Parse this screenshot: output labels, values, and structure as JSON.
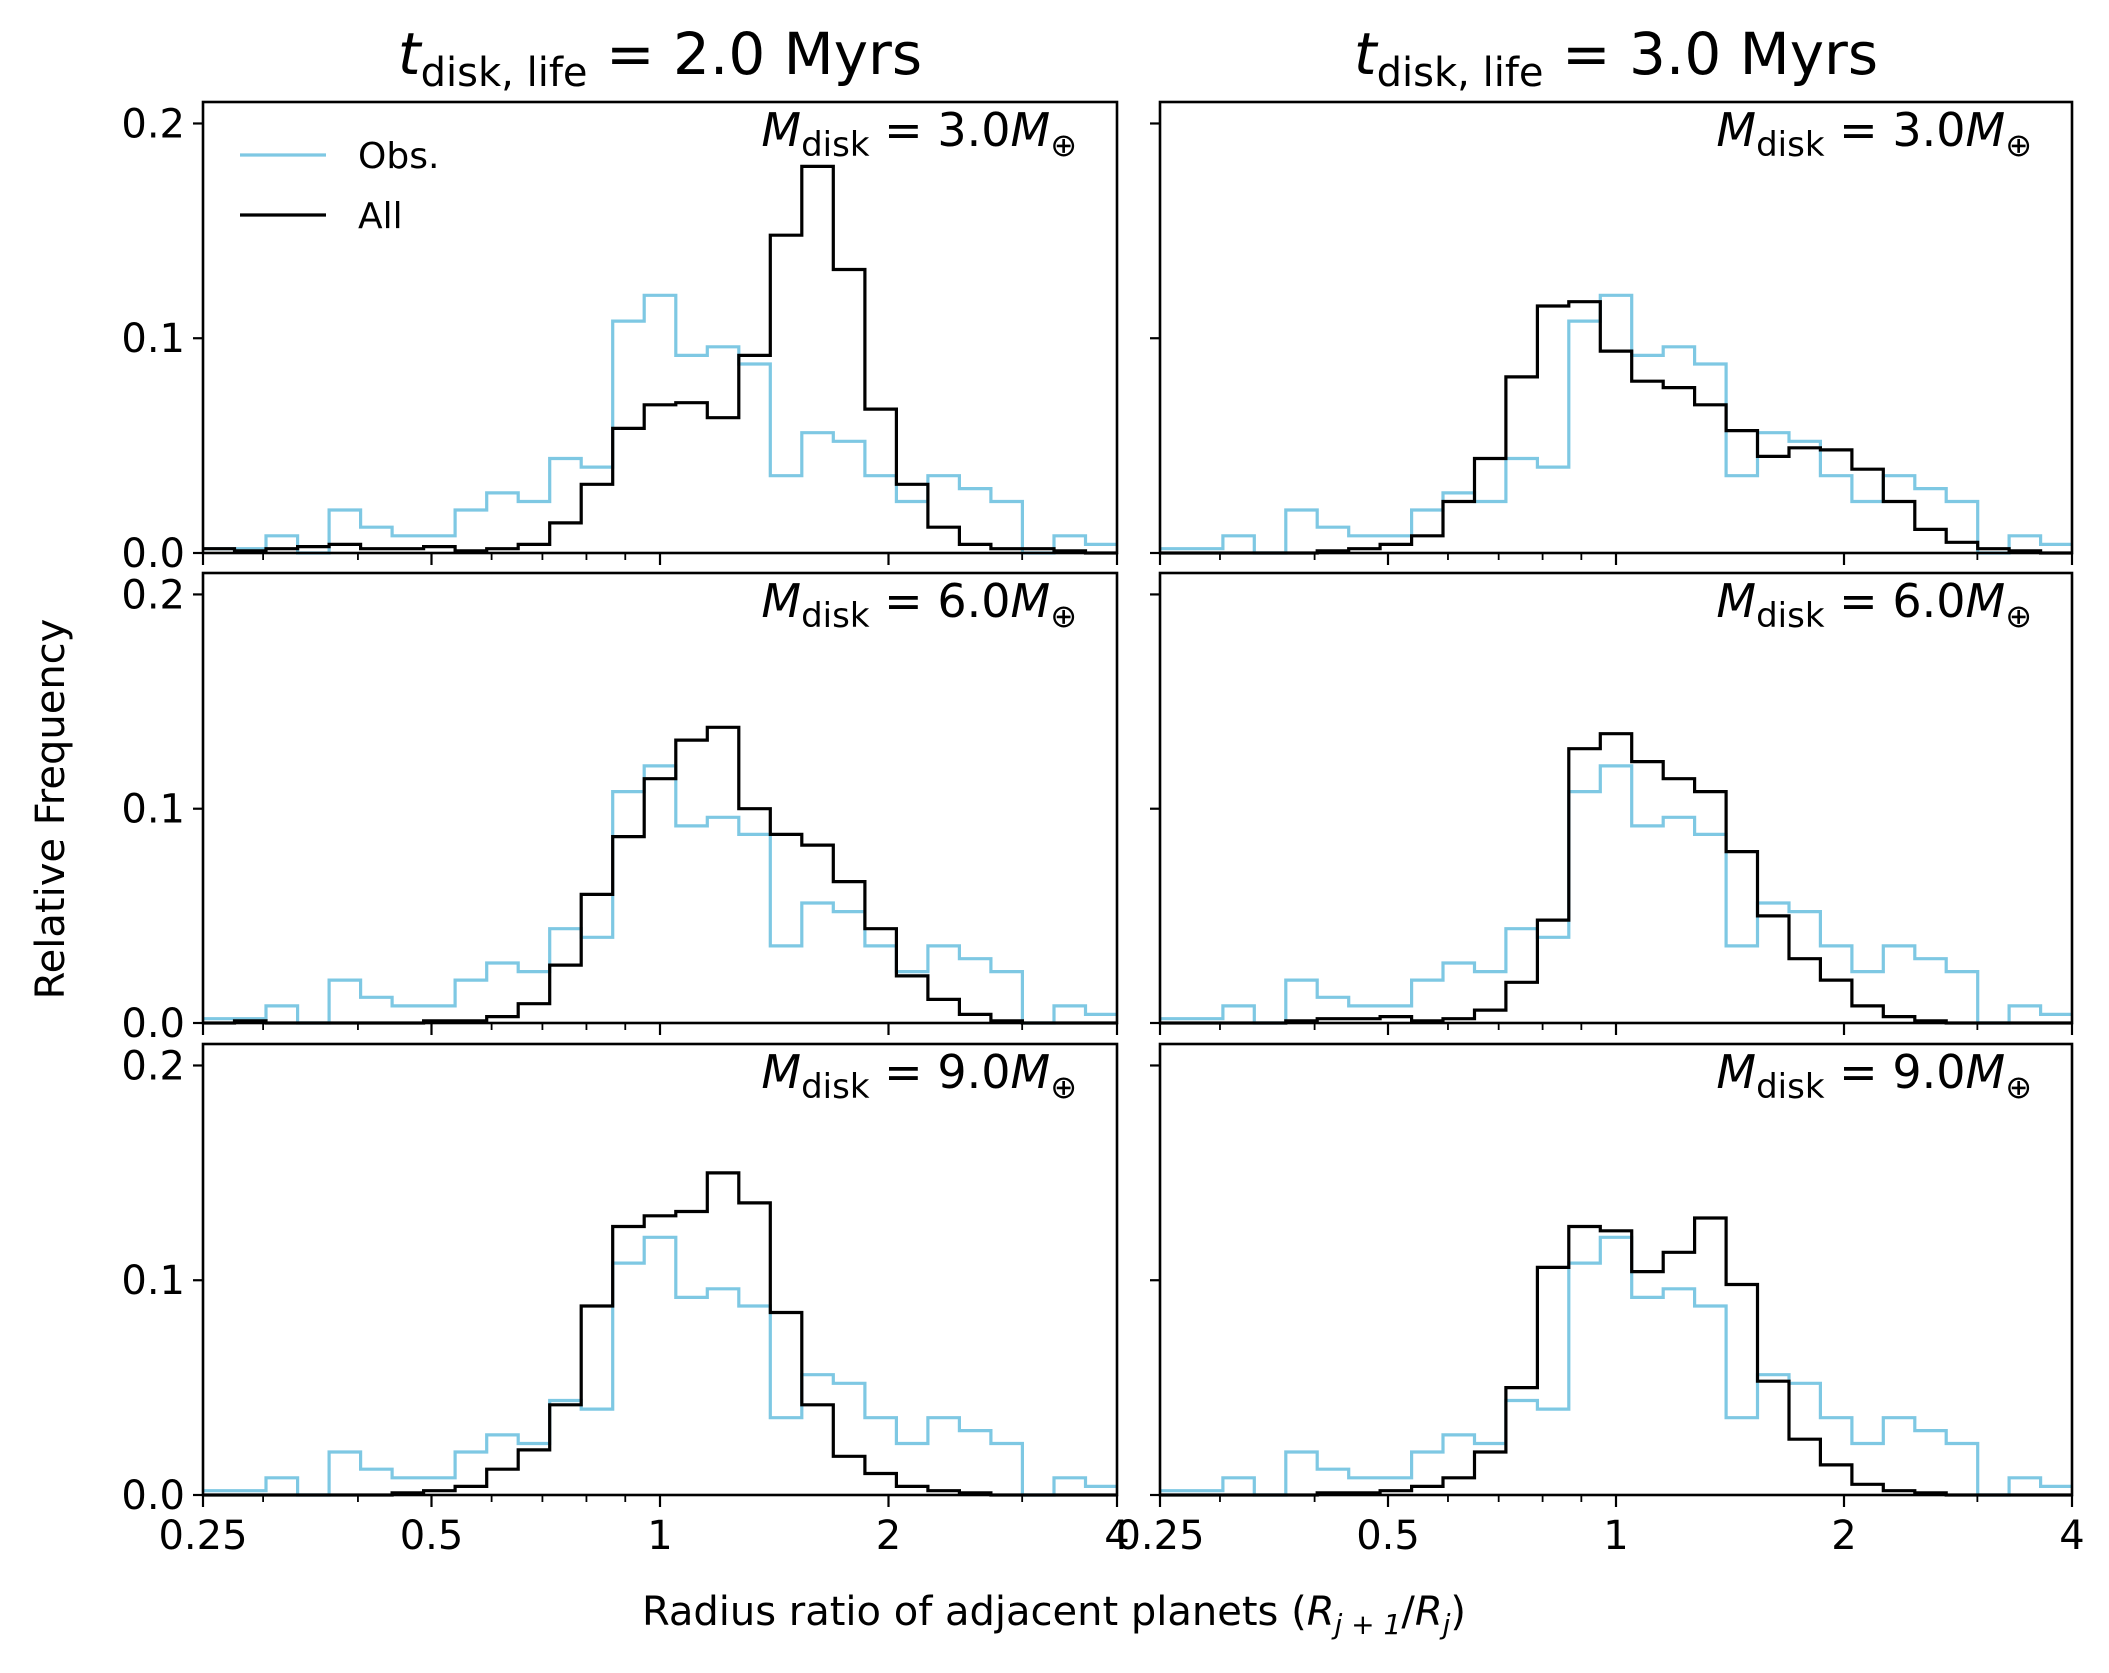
{
  "chart_data": {
    "type": "histogram-grid",
    "xlabel_prefix": "Radius ratio of adjacent planets (",
    "xlabel_var": "R",
    "xlabel_sub1": "j + 1",
    "xlabel_slash": "/",
    "xlabel_sub2": "j",
    "xlabel_suffix": ")",
    "ylabel": "Relative Frequency",
    "x_scale": "log2",
    "xlim": [
      0.25,
      4
    ],
    "ylim": [
      0,
      0.21
    ],
    "xticks": [
      {
        "value": 0.25,
        "label": "0.25"
      },
      {
        "value": 0.5,
        "label": "0.5"
      },
      {
        "value": 1,
        "label": "1"
      },
      {
        "value": 2,
        "label": "2"
      },
      {
        "value": 4,
        "label": "4"
      }
    ],
    "yticks": [
      {
        "value": 0.0,
        "label": "0.0"
      },
      {
        "value": 0.1,
        "label": "0.1"
      },
      {
        "value": 0.2,
        "label": "0.2"
      }
    ],
    "bin_count": 29,
    "legend": {
      "placement": "top-left of first panel",
      "entries": [
        {
          "label": "Obs.",
          "color": "#7ec8e3"
        },
        {
          "label": "All",
          "color": "#000000"
        }
      ]
    },
    "columns": [
      {
        "title_var": "t",
        "title_sub": "disk, life",
        "title_rest": " = 2.0 Myrs"
      },
      {
        "title_var": "t",
        "title_sub": "disk, life",
        "title_rest": " = 3.0 Myrs"
      }
    ],
    "observed": [
      0.002,
      0.002,
      0.008,
      0.0,
      0.02,
      0.012,
      0.008,
      0.008,
      0.02,
      0.028,
      0.024,
      0.044,
      0.04,
      0.108,
      0.12,
      0.092,
      0.096,
      0.088,
      0.036,
      0.056,
      0.052,
      0.036,
      0.024,
      0.036,
      0.03,
      0.024,
      0.0,
      0.008,
      0.004
    ],
    "panels": [
      {
        "row": 0,
        "col": 0,
        "annotation_var": "M",
        "annotation_sub": "disk",
        "annotation_value": " = 3.0",
        "annotation_unit": "M",
        "annotation_unit_sub": "⊕",
        "all": [
          0.002,
          0.001,
          0.002,
          0.003,
          0.004,
          0.002,
          0.002,
          0.003,
          0.001,
          0.002,
          0.004,
          0.014,
          0.032,
          0.058,
          0.069,
          0.07,
          0.063,
          0.092,
          0.148,
          0.18,
          0.132,
          0.067,
          0.032,
          0.012,
          0.004,
          0.002,
          0.002,
          0.001,
          0.0
        ]
      },
      {
        "row": 0,
        "col": 1,
        "annotation_var": "M",
        "annotation_sub": "disk",
        "annotation_value": " = 3.0",
        "annotation_unit": "M",
        "annotation_unit_sub": "⊕",
        "all": [
          0.0,
          0.0,
          0.0,
          0.0,
          0.0,
          0.001,
          0.002,
          0.004,
          0.008,
          0.024,
          0.044,
          0.082,
          0.115,
          0.117,
          0.094,
          0.08,
          0.077,
          0.069,
          0.057,
          0.045,
          0.049,
          0.048,
          0.039,
          0.024,
          0.011,
          0.005,
          0.002,
          0.001,
          0.0
        ]
      },
      {
        "row": 1,
        "col": 0,
        "annotation_var": "M",
        "annotation_sub": "disk",
        "annotation_value": " = 6.0",
        "annotation_unit": "M",
        "annotation_unit_sub": "⊕",
        "all": [
          0.0,
          0.001,
          0.0,
          0.0,
          0.0,
          0.0,
          0.0,
          0.001,
          0.001,
          0.003,
          0.009,
          0.027,
          0.06,
          0.087,
          0.114,
          0.132,
          0.138,
          0.1,
          0.088,
          0.083,
          0.066,
          0.044,
          0.022,
          0.011,
          0.004,
          0.001,
          0.0,
          0.0,
          0.0
        ]
      },
      {
        "row": 1,
        "col": 1,
        "annotation_var": "M",
        "annotation_sub": "disk",
        "annotation_value": " = 6.0",
        "annotation_unit": "M",
        "annotation_unit_sub": "⊕",
        "all": [
          0.0,
          0.0,
          0.0,
          0.0,
          0.001,
          0.002,
          0.002,
          0.003,
          0.001,
          0.002,
          0.006,
          0.019,
          0.048,
          0.128,
          0.135,
          0.122,
          0.114,
          0.108,
          0.08,
          0.05,
          0.03,
          0.02,
          0.008,
          0.003,
          0.001,
          0.0,
          0.0,
          0.0,
          0.0
        ]
      },
      {
        "row": 2,
        "col": 0,
        "annotation_var": "M",
        "annotation_sub": "disk",
        "annotation_value": " = 9.0",
        "annotation_unit": "M",
        "annotation_unit_sub": "⊕",
        "all": [
          0.0,
          0.0,
          0.0,
          0.0,
          0.0,
          0.0,
          0.001,
          0.002,
          0.004,
          0.012,
          0.021,
          0.042,
          0.088,
          0.125,
          0.13,
          0.132,
          0.15,
          0.136,
          0.085,
          0.042,
          0.018,
          0.01,
          0.004,
          0.002,
          0.001,
          0.0,
          0.0,
          0.0,
          0.0
        ]
      },
      {
        "row": 2,
        "col": 1,
        "annotation_var": "M",
        "annotation_sub": "disk",
        "annotation_value": " = 9.0",
        "annotation_unit": "M",
        "annotation_unit_sub": "⊕",
        "all": [
          0.0,
          0.0,
          0.0,
          0.0,
          0.0,
          0.001,
          0.001,
          0.002,
          0.004,
          0.008,
          0.02,
          0.05,
          0.106,
          0.125,
          0.123,
          0.104,
          0.113,
          0.129,
          0.098,
          0.053,
          0.026,
          0.014,
          0.005,
          0.002,
          0.001,
          0.0,
          0.0,
          0.0,
          0.0
        ]
      }
    ]
  }
}
